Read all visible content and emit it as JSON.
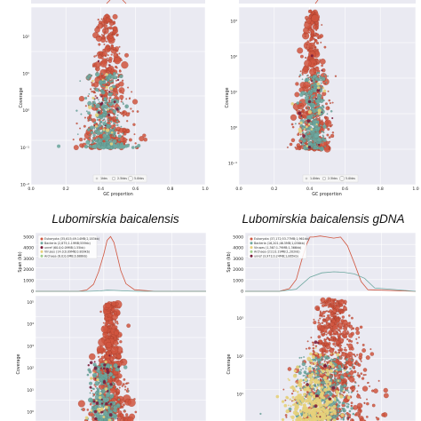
{
  "titles": {
    "bottom_left": "Lubomirskia baicalensis",
    "bottom_right": "Lubomirskia baicalensis  gDNA"
  },
  "colors": {
    "plot_bg": "#eaeaf2",
    "grid": "#ffffff",
    "eukaryota": "#d0553e",
    "bacteria": "#6fa8a0",
    "unref": "#7b1e3c",
    "viruses": "#e6d07a",
    "archaea": "#9fcf8a"
  },
  "chart_data": [
    {
      "panel": "top-left",
      "type": "scatter",
      "xlabel": "GC proportion",
      "ylabel": "Coverage",
      "x_ticks": [
        "0.0",
        "0.2",
        "0.4",
        "0.6",
        "0.8",
        "1.0"
      ],
      "y_ticks": [
        "10⁻²",
        "10⁻¹",
        "10⁰",
        "10¹",
        "10²"
      ],
      "xlim": [
        0,
        1
      ],
      "ylog_range": [
        -2,
        2.8
      ],
      "size_legend": [
        "1kbs",
        "2.5kbs",
        "5.0kbs"
      ],
      "series": [
        {
          "name": "Eukaryota",
          "center_gc": 0.44,
          "peak_log_cov": 2.6
        },
        {
          "name": "Bacteria",
          "center_gc": 0.42,
          "peak_log_cov": 1.0
        }
      ]
    },
    {
      "panel": "top-right",
      "type": "scatter",
      "xlabel": "GC proportion",
      "ylabel": "Coverage",
      "x_ticks": [
        "0.0",
        "0.2",
        "0.4",
        "0.6",
        "0.8",
        "1.0"
      ],
      "y_ticks": [
        "10⁻¹",
        "10⁰",
        "10¹",
        "10²",
        "10³"
      ],
      "xlim": [
        0,
        1
      ],
      "ylog_range": [
        -1.6,
        3.4
      ],
      "size_legend": [
        "1.0kbs",
        "2.5kbs",
        "5.0kbs"
      ],
      "series": [
        {
          "name": "Eukaryota",
          "center_gc": 0.42,
          "peak_log_cov": 3.3
        },
        {
          "name": "Bacteria",
          "center_gc": 0.42,
          "peak_log_cov": 1.6
        }
      ]
    },
    {
      "panel": "bottom-left-hist",
      "type": "line",
      "xlabel": "",
      "ylabel": "Span (kb)",
      "y_ticks": [
        "0",
        "1000",
        "2000",
        "3000",
        "4000",
        "5000"
      ],
      "ylim": [
        0,
        5400
      ],
      "legend": [
        "Eukaryota (35,615;49.14MB;2,183kb)",
        "Bacteria (2,875;1.19MB;559kb)",
        "unref (60.0;0.09MB;1.55kb)",
        "Viruses (14.0;0.09MB;0.809kb)",
        "Archaea (6.0;0.0MB;0.686kb)"
      ],
      "series": [
        {
          "x": [
            0.0,
            0.25,
            0.3,
            0.34,
            0.37,
            0.4,
            0.42,
            0.44,
            0.46,
            0.48,
            0.5,
            0.53,
            0.58,
            0.7,
            1.0
          ],
          "values": [
            0,
            0,
            120,
            650,
            1800,
            3400,
            4700,
            5050,
            4500,
            3200,
            1900,
            700,
            150,
            0,
            0
          ]
        },
        {
          "x": [
            0.0,
            0.3,
            0.38,
            0.42,
            0.46,
            0.52,
            0.6,
            1.0
          ],
          "values": [
            0,
            0,
            40,
            110,
            90,
            40,
            0,
            0
          ]
        }
      ]
    },
    {
      "panel": "bottom-right-hist",
      "type": "line",
      "xlabel": "",
      "ylabel": "Span (kb)",
      "y_ticks": [
        "0",
        "1000",
        "2000",
        "3000",
        "4000",
        "5000"
      ],
      "ylim": [
        0,
        5400
      ],
      "legend": [
        "Eukaryota (37,172;53.77MB;1,961kb)",
        "Bacteria (16,201;46.5MB;1,056kb)",
        "Viruses (1,367;1.79MB;1,366kb)",
        "Archaea (211;0.19MB;1,202kb)",
        "unref (3,971;0.24MB;1,065kb)"
      ],
      "series": [
        {
          "x": [
            0.0,
            0.2,
            0.26,
            0.3,
            0.33,
            0.36,
            0.38,
            0.4,
            0.44,
            0.48,
            0.52,
            0.56,
            0.6,
            0.64,
            0.68,
            0.72,
            1.0
          ],
          "values": [
            0,
            0,
            250,
            1100,
            2800,
            4300,
            5000,
            5000,
            5100,
            5000,
            4900,
            5000,
            4200,
            2600,
            900,
            150,
            0
          ]
        },
        {
          "x": [
            0.0,
            0.2,
            0.3,
            0.38,
            0.45,
            0.52,
            0.58,
            0.64,
            0.7,
            0.76,
            1.0
          ],
          "values": [
            0,
            0,
            200,
            1300,
            1700,
            1800,
            1750,
            1600,
            1200,
            300,
            0
          ]
        }
      ]
    },
    {
      "panel": "bottom-left-scatter",
      "type": "scatter",
      "ylabel": "Coverage",
      "y_ticks": [
        "10⁰",
        "10¹",
        "10²",
        "10³",
        "10⁴",
        "10⁵"
      ],
      "xlim": [
        0,
        1
      ],
      "ylog_range": [
        -0.4,
        5.3
      ],
      "series": [
        {
          "name": "Eukaryota",
          "center_gc": 0.44,
          "peak_log_cov": 5.0
        },
        {
          "name": "Bacteria",
          "center_gc": 0.4,
          "peak_log_cov": 2.2
        }
      ]
    },
    {
      "panel": "bottom-right-scatter",
      "type": "scatter",
      "ylabel": "Coverage",
      "y_ticks": [
        "10¹",
        "10²",
        "10³"
      ],
      "xlim": [
        0,
        1
      ],
      "ylog_range": [
        0.3,
        3.6
      ],
      "series": [
        {
          "name": "Eukaryota",
          "center_gc": 0.52,
          "peak_log_cov": 3.5
        },
        {
          "name": "Bacteria",
          "center_gc": 0.46,
          "peak_log_cov": 2.0
        },
        {
          "name": "Viruses",
          "center_gc": 0.4,
          "peak_log_cov": 0.9
        }
      ]
    }
  ]
}
